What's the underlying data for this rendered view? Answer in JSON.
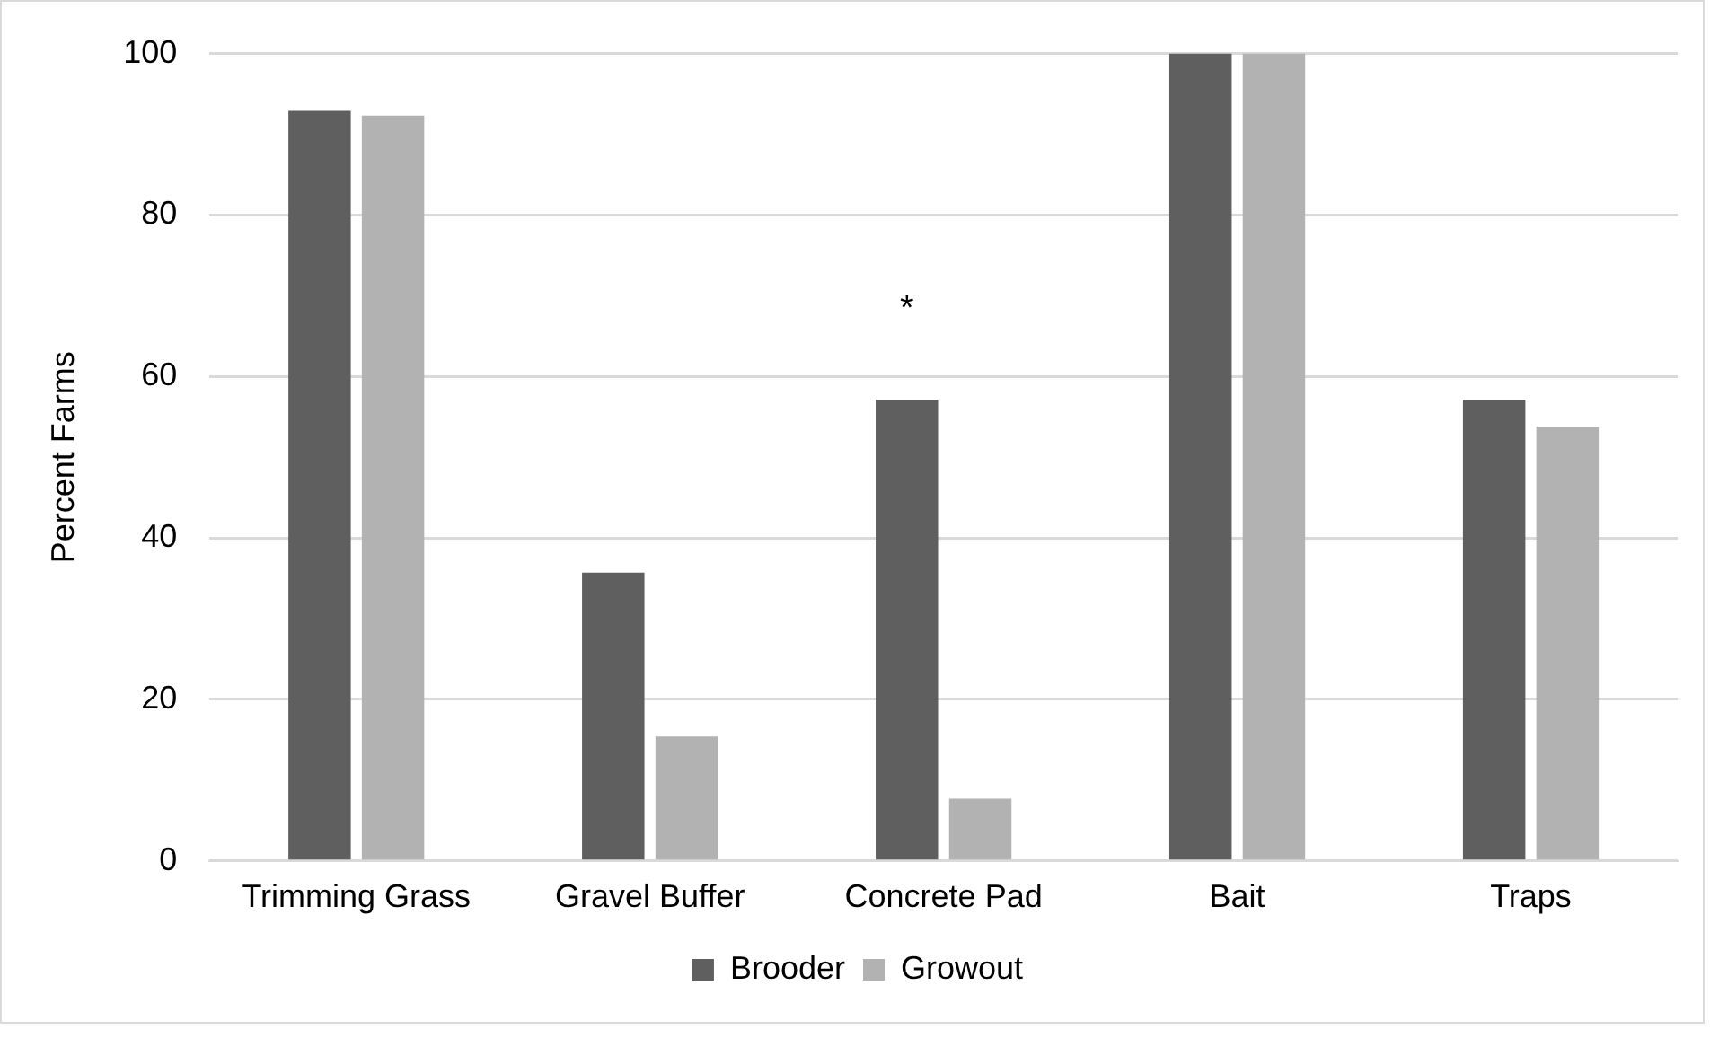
{
  "chart_data": {
    "type": "bar",
    "ylabel": "Percent Farms",
    "categories": [
      "Trimming Grass",
      "Gravel Buffer",
      "Concrete Pad",
      "Bait",
      "Traps"
    ],
    "series": [
      {
        "name": "Brooder",
        "color": "#5f5f5f",
        "values": [
          92.9,
          35.7,
          57.1,
          100,
          57.1
        ],
        "value_labels": [
          null,
          null,
          "*",
          null,
          null
        ]
      },
      {
        "name": "Growout",
        "color": "#b2b2b2",
        "values": [
          92.3,
          15.4,
          7.7,
          100,
          53.8
        ]
      }
    ],
    "ylim": [
      0,
      100
    ],
    "yticks": [
      0,
      20,
      40,
      60,
      80,
      100
    ],
    "grid": "y",
    "legend": "bottom"
  }
}
